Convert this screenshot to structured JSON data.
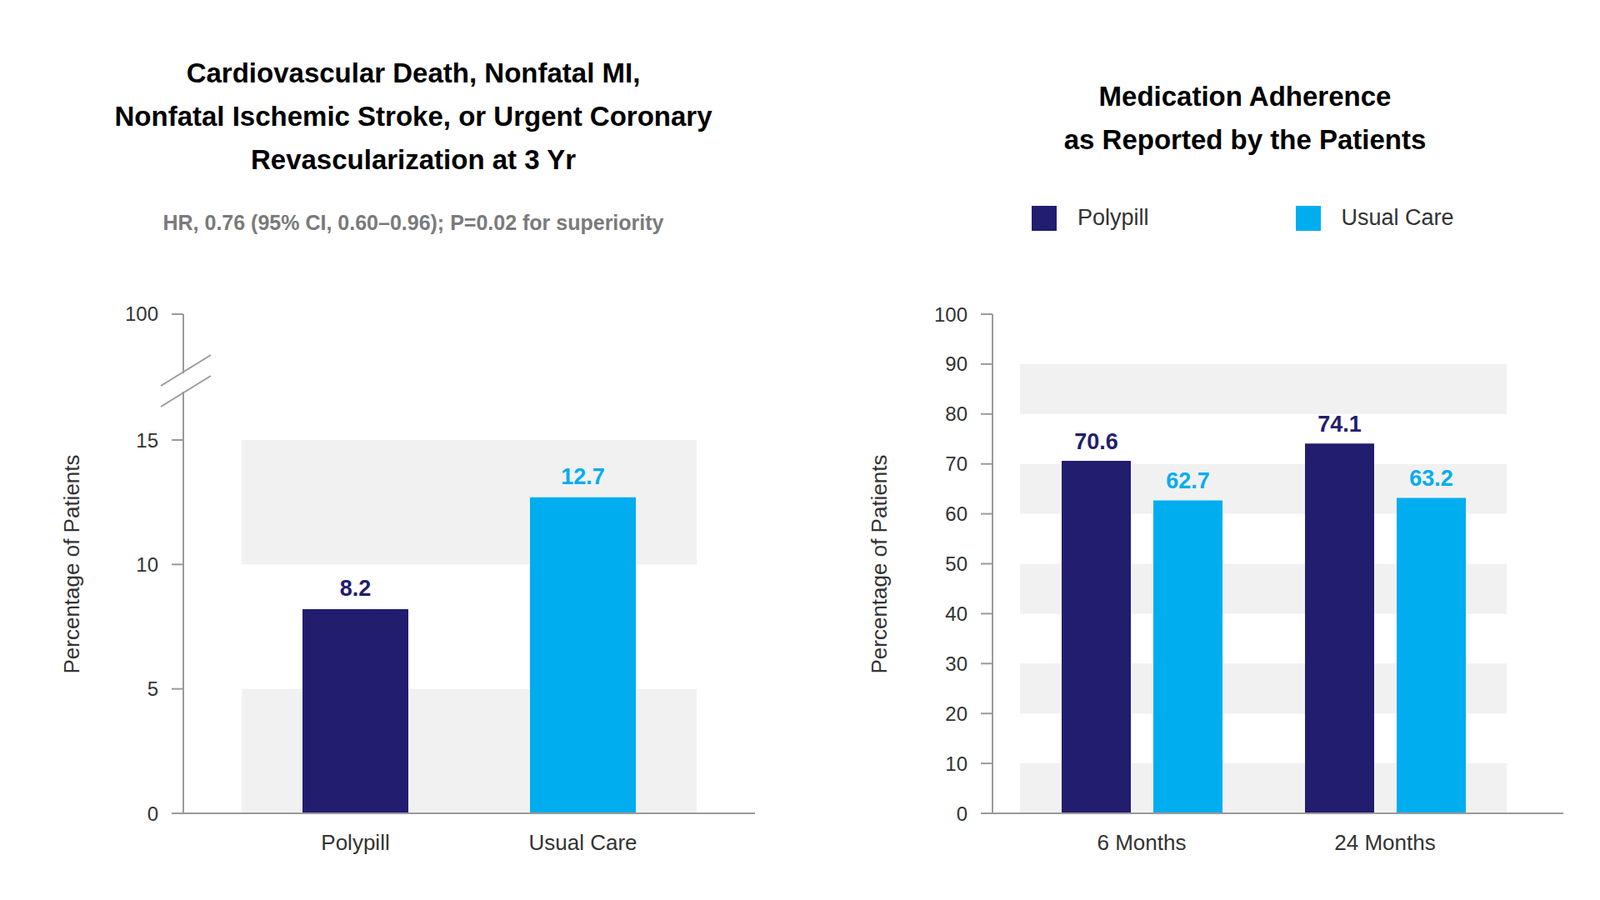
{
  "chart_data": [
    {
      "type": "bar",
      "title": "Cardiovascular Death, Nonfatal MI,\nNonfatal Ischemic Stroke, or Urgent Coronary\nRevascularization at 3 Yr",
      "subtitle": "HR, 0.76 (95% CI, 0.60–0.96); P=0.02 for superiority",
      "categories": [
        "Polypill",
        "Usual Care"
      ],
      "values": [
        8.2,
        12.7
      ],
      "colors": [
        "#221d6e",
        "#00adef"
      ],
      "ylabel": "Percentage of Patients",
      "ylim": [
        0,
        15
      ],
      "yticks": [
        0,
        5,
        10,
        15
      ],
      "y_break_tick": 100,
      "grid": true,
      "data_labels": true
    },
    {
      "type": "bar",
      "title": "Medication Adherence\nas Reported by the Patients",
      "categories": [
        "6 Months",
        "24 Months"
      ],
      "series": [
        {
          "name": "Polypill",
          "color": "#221d6e",
          "values": [
            70.6,
            74.1
          ]
        },
        {
          "name": "Usual Care",
          "color": "#00adef",
          "values": [
            62.7,
            63.2
          ]
        }
      ],
      "ylabel": "Percentage of Patients",
      "ylim": [
        0,
        100
      ],
      "yticks": [
        0,
        10,
        20,
        30,
        40,
        50,
        60,
        70,
        80,
        90,
        100
      ],
      "grid": true,
      "legend": "top",
      "data_labels": true
    }
  ]
}
